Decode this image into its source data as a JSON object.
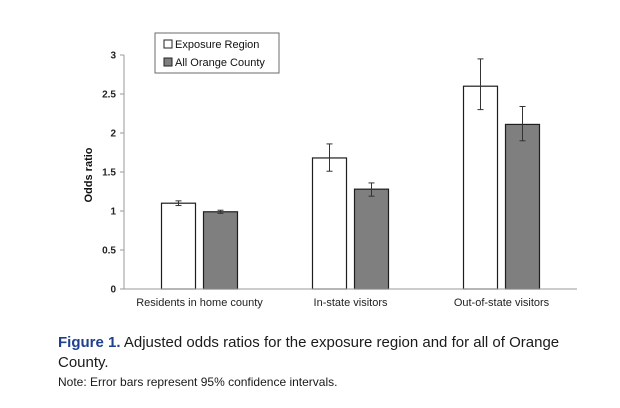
{
  "chart_data": {
    "type": "bar",
    "categories": [
      "Residents in home county",
      "In-state visitors",
      "Out-of-state visitors"
    ],
    "series": [
      {
        "name": "Exposure Region",
        "values": [
          1.1,
          1.68,
          2.6
        ],
        "ci_low": [
          1.07,
          1.51,
          2.3
        ],
        "ci_high": [
          1.13,
          1.86,
          2.95
        ],
        "color": "#ffffff"
      },
      {
        "name": "All Orange County",
        "values": [
          0.99,
          1.28,
          2.11
        ],
        "ci_low": [
          0.97,
          1.19,
          1.9
        ],
        "ci_high": [
          1.01,
          1.36,
          2.34
        ],
        "color": "#7f7f7f"
      }
    ],
    "ylabel": "Odds ratio",
    "ylim": [
      0,
      3
    ],
    "yticks": [
      "0",
      "0.5",
      "1",
      "1.5",
      "2",
      "2.5",
      "3"
    ],
    "legend_position": "top-left"
  },
  "caption": {
    "label": "Figure 1.",
    "text": "Adjusted odds ratios for the exposure region and for all of Orange County."
  },
  "note": "Note: Error bars represent 95% confidence intervals."
}
